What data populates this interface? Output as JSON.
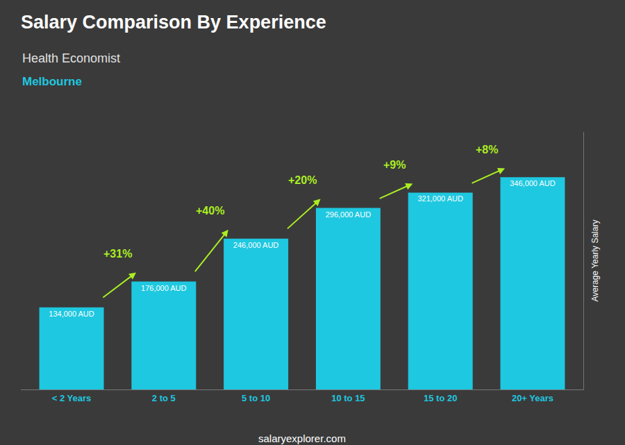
{
  "chart_data": {
    "type": "bar",
    "title": "Salary Comparison By Experience",
    "subtitle": [
      "Health Economist",
      "Melbourne"
    ],
    "ylabel": "Average Yearly Salary",
    "categories": [
      "< 2 Years",
      "2 to 5",
      "5 to 10",
      "10 to 15",
      "15 to 20",
      "20+ Years"
    ],
    "values": [
      134000,
      176000,
      246000,
      296000,
      321000,
      346000
    ],
    "value_labels": [
      "134,000 AUD",
      "176,000 AUD",
      "246,000 AUD",
      "296,000 AUD",
      "321,000 AUD",
      "346,000 AUD"
    ],
    "data_labels": true,
    "color": "#1ec8e0",
    "ylim": [
      0,
      420000
    ],
    "grid": false,
    "tick_labels": "x",
    "annotations": [
      {
        "from": "< 2 Years",
        "to": "2 to 5",
        "text": "+31%"
      },
      {
        "from": "2 to 5",
        "to": "5 to 10",
        "text": "+40%"
      },
      {
        "from": "5 to 10",
        "to": "10 to 15",
        "text": "+20%"
      },
      {
        "from": "10 to 15",
        "to": "15 to 20",
        "text": "+9%"
      },
      {
        "from": "15 to 20",
        "to": "20+ Years",
        "text": "+8%"
      },
      {
        "text": "salaryexplorer.com"
      }
    ]
  }
}
